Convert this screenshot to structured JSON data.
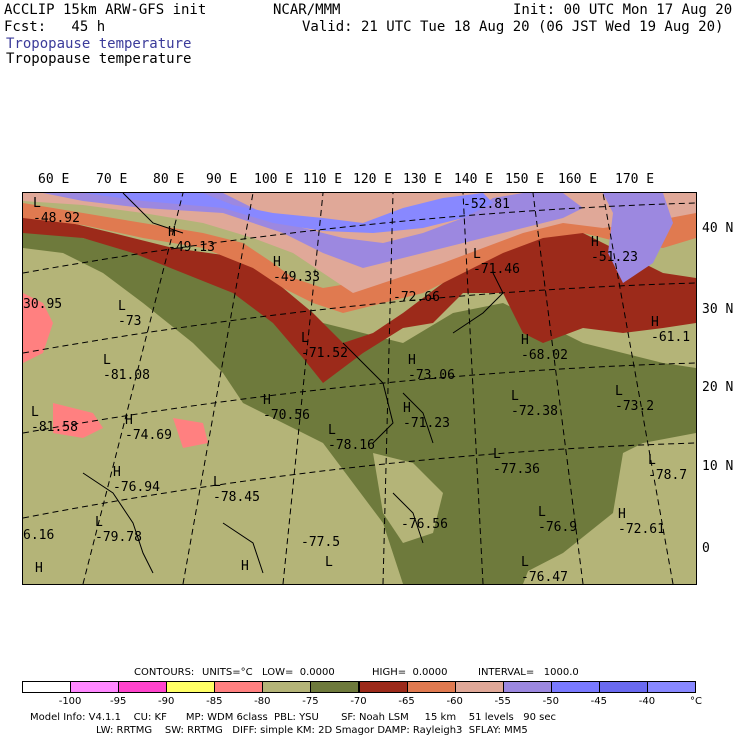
{
  "header": {
    "line1_left": "ACCLIP 15km ARW-GFS init",
    "line1_center": "NCAR/MMM",
    "line1_right": "Init: 00 UTC Mon 17 Aug 20",
    "line2_left": "Fcst:   45 h",
    "line2_right": "Valid: 21 UTC Tue 18 Aug 20 (06 JST Wed 19 Aug 20)",
    "field_title_1": "Tropopause temperature",
    "field_title_2": "Tropopause temperature"
  },
  "map": {
    "lon_labels": [
      "60 E",
      "70 E",
      "80 E",
      "90 E",
      "100 E",
      "110 E",
      "120 E",
      "130 E",
      "140 E",
      "150 E",
      "160 E",
      "170 E"
    ],
    "lat_labels": [
      "40 N",
      "30 N",
      "20 N",
      "10 N",
      "0"
    ],
    "highs_lows": [
      {
        "type": "L",
        "value": "-48.92"
      },
      {
        "type": "H",
        "value": "-49.13"
      },
      {
        "type": "H",
        "value": "-49.33"
      },
      {
        "type": "",
        "value": "-52.81"
      },
      {
        "type": "H",
        "value": "-51.23"
      },
      {
        "type": "L",
        "value": "-71.46"
      },
      {
        "type": "",
        "value": "-72.66"
      },
      {
        "type": "",
        "value": "30.95"
      },
      {
        "type": "L",
        "value": "-73"
      },
      {
        "type": "L",
        "value": "-71.52"
      },
      {
        "type": "H",
        "value": "-61.1"
      },
      {
        "type": "H",
        "value": "-68.02"
      },
      {
        "type": "H",
        "value": "-73.06"
      },
      {
        "type": "L",
        "value": "-81.08"
      },
      {
        "type": "L",
        "value": "-72.38"
      },
      {
        "type": "L",
        "value": "-73.2"
      },
      {
        "type": "H",
        "value": "-70.56"
      },
      {
        "type": "H",
        "value": "-71.23"
      },
      {
        "type": "L",
        "value": "-81.58"
      },
      {
        "type": "H",
        "value": "-74.69"
      },
      {
        "type": "L",
        "value": "-78.16"
      },
      {
        "type": "L",
        "value": "-77.36"
      },
      {
        "type": "L",
        "value": "-78.7"
      },
      {
        "type": "H",
        "value": "-76.94"
      },
      {
        "type": "L",
        "value": "-78.45"
      },
      {
        "type": "L",
        "value": "-79.78"
      },
      {
        "type": "",
        "value": "-76.56"
      },
      {
        "type": "L",
        "value": "-76.9"
      },
      {
        "type": "H",
        "value": "-72.61"
      },
      {
        "type": "",
        "value": "6.16"
      },
      {
        "type": "",
        "value": "-77.5"
      },
      {
        "type": "L",
        "value": ""
      },
      {
        "type": "H",
        "value": ""
      },
      {
        "type": "H",
        "value": ""
      },
      {
        "type": "L",
        "value": "-76.47"
      }
    ]
  },
  "contour_info": {
    "contours_label": "CONTOURS:",
    "units": "UNITS=°C",
    "low": "LOW=  0.0000",
    "high": "HIGH=  0.0000",
    "interval": "INTERVAL=   1000.0"
  },
  "colorbar": {
    "unit": "°C",
    "labels": [
      "-100",
      "-95",
      "-90",
      "-85",
      "-80",
      "-75",
      "-70",
      "-65",
      "-60",
      "-55",
      "-50",
      "-45",
      "-40"
    ],
    "colors": [
      "#ffffff",
      "#ff88ff",
      "#ff44cc",
      "#ffff66",
      "#ff8080",
      "#b4b478",
      "#6e7a3c",
      "#9c2a1a",
      "#e07a50",
      "#e0a898",
      "#9c88e0",
      "#7a7aff",
      "#6a6af0",
      "#8888ff"
    ]
  },
  "footer": {
    "line1": "Model Info: V4.1.1    CU: KF      MP: WDM 6class  PBL: YSU       SF: Noah LSM     15 km    51 levels   90 sec",
    "line2": "LW: RRTMG    SW: RRTMG   DIFF: simple KM: 2D Smagor DAMP: Rayleigh3  SFLAY: MM5"
  }
}
